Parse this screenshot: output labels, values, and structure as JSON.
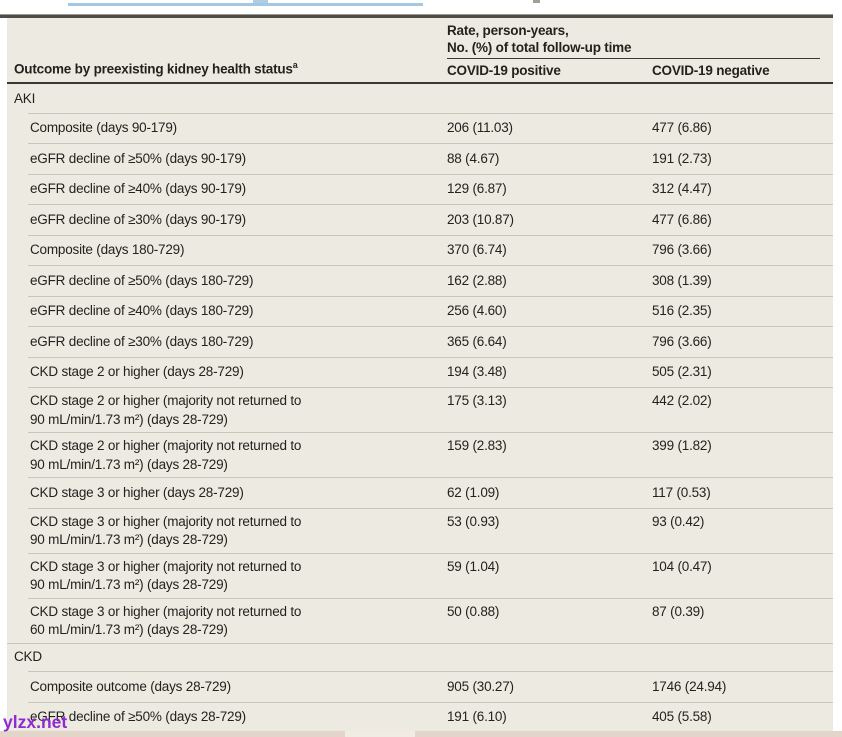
{
  "page": {
    "watermark_text": "ylzx.net"
  },
  "table": {
    "header": {
      "col1_header": "Outcome by preexisting kidney health status",
      "col1_header_sup": "a",
      "spanner_line1": "Rate, person-years,",
      "spanner_line2": "No. (%) of total follow-up time",
      "col2_header": "COVID-19 positive",
      "col3_header": "COVID-19 negative"
    },
    "rows": [
      {
        "type": "section",
        "label": "AKI"
      },
      {
        "type": "single",
        "label": "Composite (days 90-179)",
        "pos": "206 (11.03)",
        "neg": "477 (6.86)"
      },
      {
        "type": "single",
        "label": "eGFR decline of ≥50% (days 90-179)",
        "pos": "88 (4.67)",
        "neg": "191 (2.73)"
      },
      {
        "type": "single",
        "label": "eGFR decline of ≥40% (days 90-179)",
        "pos": "129 (6.87)",
        "neg": "312 (4.47)"
      },
      {
        "type": "single",
        "label": "eGFR decline of ≥30% (days 90-179)",
        "pos": "203 (10.87)",
        "neg": "477 (6.86)"
      },
      {
        "type": "single",
        "label": "Composite (days 180-729)",
        "pos": "370 (6.74)",
        "neg": "796 (3.66)"
      },
      {
        "type": "single",
        "label": "eGFR decline of ≥50% (days 180-729)",
        "pos": "162 (2.88)",
        "neg": "308 (1.39)"
      },
      {
        "type": "single",
        "label": "eGFR decline of ≥40% (days 180-729)",
        "pos": "256 (4.60)",
        "neg": "516 (2.35)"
      },
      {
        "type": "single",
        "label": "eGFR decline of ≥30% (days 180-729)",
        "pos": "365 (6.64)",
        "neg": "796 (3.66)"
      },
      {
        "type": "single",
        "label": "CKD stage 2 or higher (days 28-729)",
        "pos": "194 (3.48)",
        "neg": "505 (2.31)"
      },
      {
        "type": "double",
        "line1": "CKD stage 2 or higher (majority not returned to",
        "line2": "90 mL/min/1.73 m²) (days 28-729)",
        "pos": "175 (3.13)",
        "neg": "442 (2.02)"
      },
      {
        "type": "double",
        "line1": "CKD stage 2 or higher (majority not returned to",
        "line2": "90 mL/min/1.73 m²) (days 28-729)",
        "pos": "159 (2.83)",
        "neg": "399 (1.82)"
      },
      {
        "type": "single",
        "label": "CKD stage 3 or higher (days 28-729)",
        "pos": "62 (1.09)",
        "neg": "117 (0.53)"
      },
      {
        "type": "double",
        "line1": "CKD stage 3 or higher (majority not returned to",
        "line2": "90 mL/min/1.73 m²) (days 28-729)",
        "pos": "53 (0.93)",
        "neg": "93 (0.42)"
      },
      {
        "type": "double",
        "line1": "CKD stage 3 or higher (majority not returned to",
        "line2": "90 mL/min/1.73 m²) (days 28-729)",
        "pos": "59 (1.04)",
        "neg": "104 (0.47)"
      },
      {
        "type": "double",
        "line1": "CKD stage 3 or higher (majority not returned to",
        "line2": "60 mL/min/1.73 m²) (days 28-729)",
        "pos": "50 (0.88)",
        "neg": "87 (0.39)"
      },
      {
        "type": "section",
        "label": "CKD"
      },
      {
        "type": "single",
        "label": "Composite outcome (days 28-729)",
        "pos": "905 (30.27)",
        "neg": "1746 (24.94)"
      },
      {
        "type": "single",
        "label": "eGFR decline of ≥50% (days 28-729)",
        "pos": "191 (6.10)",
        "neg": "405 (5.58)"
      }
    ]
  },
  "colors": {
    "table_background": "#edeae1",
    "row_separator": "#c9c6bc",
    "header_rule": "#3b3833",
    "top_border": "#4f4c46",
    "top_blue_line": "#a6c7e2",
    "watermark": "#8e2ad0",
    "bottom_strip": "#e4d5ca"
  }
}
